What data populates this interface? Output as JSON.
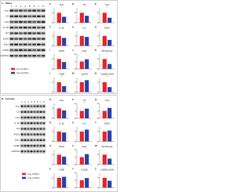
{
  "panels": [
    {
      "letter": "A",
      "title": "Males",
      "lanes": [
        "1",
        "2",
        "3",
        "4",
        "5",
        "6",
        "7",
        "8"
      ],
      "blots": [
        "Nox",
        "C5",
        "C1q",
        "IL-1β",
        "IL6",
        "iNOS",
        "Arg1",
        "CD68",
        "GAPDH"
      ],
      "legend": [
        "Cre-/Cd47+",
        "Cre+/Cd47+"
      ],
      "colors": [
        "#e3262b",
        "#2a3fa6"
      ],
      "charts": [
        {
          "letter": "C",
          "title": "Nox",
          "values": [
            1,
            0.6
          ],
          "ylim": [
            0,
            1.5
          ],
          "yticks": [
            0,
            1
          ],
          "sig": "*"
        },
        {
          "letter": "D",
          "title": "C5",
          "values": [
            1,
            0.7
          ],
          "ylim": [
            0,
            1.5
          ],
          "yticks": [
            0,
            1
          ]
        },
        {
          "letter": "E",
          "title": "C1q",
          "values": [
            1,
            0.5
          ],
          "ylim": [
            0,
            1.5
          ],
          "yticks": [
            0,
            1
          ],
          "sig": "*"
        },
        {
          "letter": "F",
          "title": "IL-1β",
          "values": [
            1,
            0.8
          ],
          "ylim": [
            0,
            1.5
          ],
          "yticks": [
            0,
            1
          ]
        },
        {
          "letter": "G",
          "title": "IL6",
          "values": [
            1,
            0.9
          ],
          "ylim": [
            0,
            1.5
          ],
          "yticks": [
            0,
            1
          ]
        },
        {
          "letter": "H",
          "title": "iNOS",
          "values": [
            1,
            0.6
          ],
          "ylim": [
            0,
            1.5
          ],
          "yticks": [
            0,
            1
          ]
        },
        {
          "letter": "I",
          "title": "iNOS",
          "values": [
            1,
            0.7
          ],
          "ylim": [
            0,
            1.5
          ],
          "yticks": [
            0,
            1
          ]
        },
        {
          "letter": "J",
          "title": "Arg1",
          "values": [
            1,
            1.3
          ],
          "ylim": [
            0,
            2
          ],
          "yticks": [
            0,
            1,
            2
          ]
        },
        {
          "letter": "K",
          "title": "iNOS/Arg1",
          "values": [
            1,
            0.5
          ],
          "ylim": [
            0,
            1.5
          ],
          "yticks": [
            0,
            1
          ],
          "sig": "*"
        },
        {
          "letter": "L",
          "title": "Cd68",
          "values": [
            1,
            0.6
          ],
          "ylim": [
            0,
            1.5
          ],
          "yticks": [
            0,
            1
          ],
          "sig": "*"
        },
        {
          "letter": "M",
          "title": "Cd206",
          "values": [
            1,
            1.2
          ],
          "ylim": [
            0,
            1.5
          ],
          "yticks": [
            0,
            1
          ]
        },
        {
          "letter": "N",
          "title": "Cd68/Cd206",
          "values": [
            1,
            0.5
          ],
          "ylim": [
            0,
            1.5
          ],
          "yticks": [
            0,
            1
          ],
          "sig": "*"
        }
      ]
    },
    {
      "letter": "B",
      "title": "Females",
      "lanes": [
        "1",
        "2",
        "3",
        "4",
        "5",
        "6",
        "7",
        "8"
      ],
      "blots": [
        "Nox",
        "C5",
        "C1q",
        "IL-1β",
        "IL6",
        "iNOS",
        "Arg1",
        "CD68",
        "GAPDH"
      ],
      "legend": [
        "Cre-/Cd47+",
        "Cre+/Cd47+"
      ],
      "colors": [
        "#e3262b",
        "#2a3fa6"
      ],
      "charts": [
        {
          "letter": "O",
          "title": "Nox",
          "values": [
            1,
            0.8
          ],
          "ylim": [
            0,
            1.5
          ],
          "yticks": [
            0,
            1
          ]
        },
        {
          "letter": "P",
          "title": "C5",
          "values": [
            1,
            1.3
          ],
          "ylim": [
            0,
            2
          ],
          "yticks": [
            0,
            1,
            2
          ],
          "sig": "*"
        },
        {
          "letter": "Q",
          "title": "C1q",
          "values": [
            1,
            1.4
          ],
          "ylim": [
            0,
            2
          ],
          "yticks": [
            0,
            1,
            2
          ]
        },
        {
          "letter": "R",
          "title": "IL-1β",
          "values": [
            1,
            0.9
          ],
          "ylim": [
            0,
            1.5
          ],
          "yticks": [
            0,
            1
          ]
        },
        {
          "letter": "S",
          "title": "IL6",
          "values": [
            1,
            1.2
          ],
          "ylim": [
            0,
            1.5
          ],
          "yticks": [
            0,
            1
          ]
        },
        {
          "letter": "T",
          "title": "iNOS",
          "values": [
            1,
            1.1
          ],
          "ylim": [
            0,
            1.5
          ],
          "yticks": [
            0,
            1
          ]
        },
        {
          "letter": "U",
          "title": "iNOS",
          "values": [
            1,
            0.8
          ],
          "ylim": [
            0,
            1.5
          ],
          "yticks": [
            0,
            1
          ]
        },
        {
          "letter": "V",
          "title": "Arg1",
          "values": [
            1,
            1.4
          ],
          "ylim": [
            0,
            2
          ],
          "yticks": [
            0,
            1,
            2
          ]
        },
        {
          "letter": "W",
          "title": "iNOS/Arg1",
          "values": [
            1,
            0.6
          ],
          "ylim": [
            0,
            1.5
          ],
          "yticks": [
            0,
            1
          ]
        },
        {
          "letter": "X",
          "title": "Cd68",
          "values": [
            1,
            1.1
          ],
          "ylim": [
            0,
            1.5
          ],
          "yticks": [
            0,
            1
          ]
        },
        {
          "letter": "Y",
          "title": "Cd206",
          "values": [
            1,
            1.3
          ],
          "ylim": [
            0,
            2
          ],
          "yticks": [
            0,
            1,
            2
          ]
        },
        {
          "letter": "Z",
          "title": "Cd68/Cd206",
          "values": [
            1,
            0.7
          ],
          "ylim": [
            0,
            1.5
          ],
          "yticks": [
            0,
            1
          ]
        }
      ]
    }
  ]
}
